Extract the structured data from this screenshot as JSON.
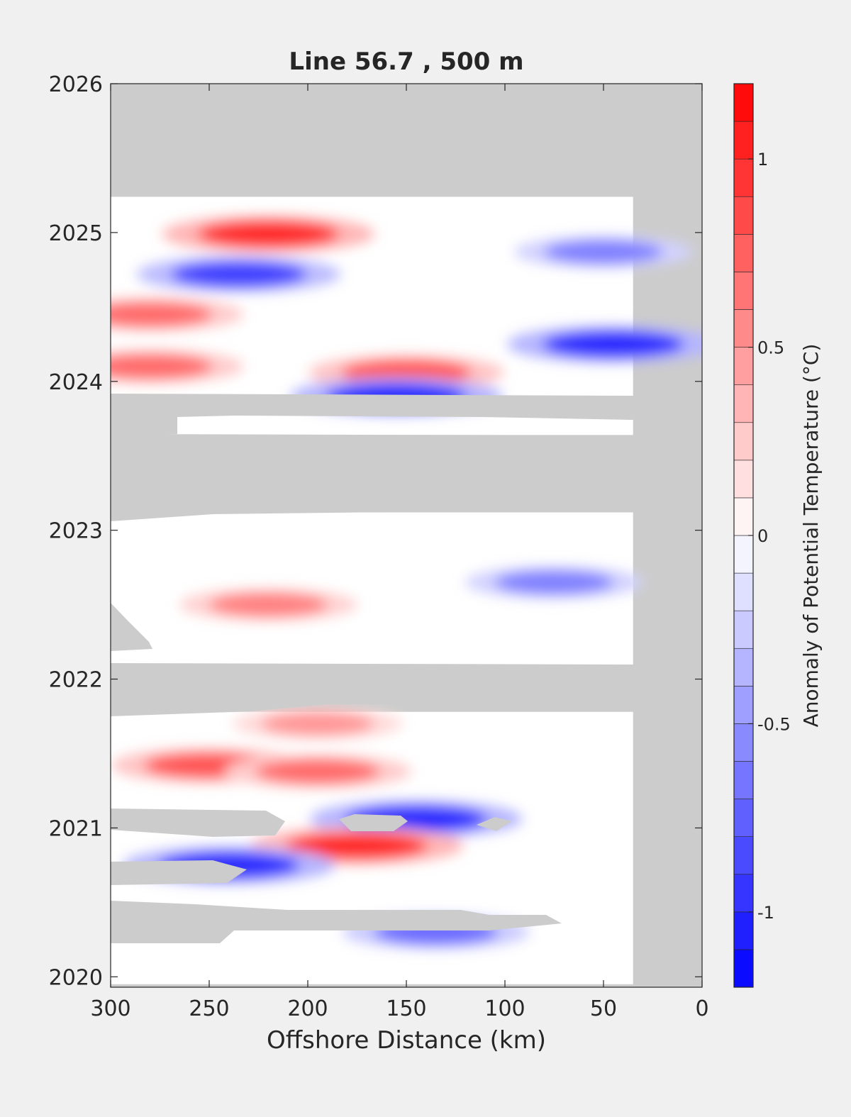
{
  "chart_data": {
    "type": "heatmap",
    "title": "Line 56.7 , 500 m",
    "xlabel": "Offshore Distance (km)",
    "ylabel": "",
    "xlim": [
      300,
      0
    ],
    "ylim": [
      2019.93,
      2026.0
    ],
    "x_reversed": true,
    "x_ticks": [
      300,
      250,
      200,
      150,
      100,
      50,
      0
    ],
    "y_ticks": [
      2020,
      2021,
      2022,
      2023,
      2024,
      2025,
      2026
    ],
    "colorbar": {
      "label": "Anomaly of Potential Temperature (°C)",
      "range": [
        -1.2,
        1.2
      ],
      "ticks": [
        -1,
        -0.5,
        0,
        0.5,
        1
      ],
      "tick_labels": [
        "-1",
        "-0.5",
        "0",
        "0.5",
        "1"
      ],
      "levels": 24,
      "low_color": "#0000ff",
      "mid_color": "#ffffff",
      "high_color": "#ff0000",
      "nodata_color": "#cccccc"
    },
    "coverage_x": [
      300,
      35
    ],
    "valid_periods": [
      [
        2019.95,
        2021.78
      ],
      [
        2022.08,
        2023.12
      ],
      [
        2023.64,
        2023.89
      ],
      [
        2023.89,
        2025.24
      ]
    ],
    "features": [
      {
        "x": 220,
        "y": 2024.99,
        "anomaly": 1.0
      },
      {
        "x": 235,
        "y": 2024.72,
        "anomaly": -0.9
      },
      {
        "x": 45,
        "y": 2024.25,
        "anomaly": -1.0
      },
      {
        "x": 150,
        "y": 2024.06,
        "anomaly": 0.8
      },
      {
        "x": 155,
        "y": 2023.9,
        "anomaly": -1.0
      },
      {
        "x": 280,
        "y": 2024.45,
        "anomaly": 0.7
      },
      {
        "x": 280,
        "y": 2024.1,
        "anomaly": 0.7
      },
      {
        "x": 50,
        "y": 2024.87,
        "anomaly": -0.6
      },
      {
        "x": 75,
        "y": 2022.65,
        "anomaly": -0.6
      },
      {
        "x": 220,
        "y": 2022.5,
        "anomaly": 0.6
      },
      {
        "x": 250,
        "y": 2021.42,
        "anomaly": 0.8
      },
      {
        "x": 195,
        "y": 2021.38,
        "anomaly": 0.7
      },
      {
        "x": 145,
        "y": 2021.06,
        "anomaly": -1.0
      },
      {
        "x": 175,
        "y": 2020.88,
        "anomaly": 1.0
      },
      {
        "x": 240,
        "y": 2020.75,
        "anomaly": -1.0
      },
      {
        "x": 195,
        "y": 2021.7,
        "anomaly": 0.5
      },
      {
        "x": 135,
        "y": 2020.3,
        "anomaly": -0.7
      }
    ]
  }
}
